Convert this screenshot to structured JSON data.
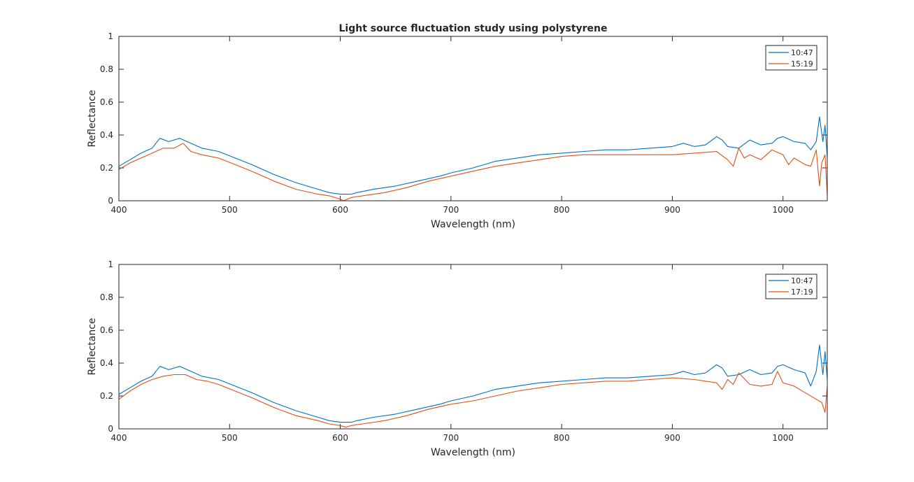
{
  "chart_data": [
    {
      "type": "line",
      "title": "Light source fluctuation study using polystyrene",
      "xlabel": "Wavelength (nm)",
      "ylabel": "Reflectance",
      "xlim": [
        400,
        1040
      ],
      "ylim": [
        0,
        1
      ],
      "xticks": [
        400,
        500,
        600,
        700,
        800,
        900,
        1000
      ],
      "yticks": [
        0,
        0.2,
        0.4,
        0.6,
        0.8,
        1
      ],
      "xtick_labels": [
        "400",
        "500",
        "600",
        "700",
        "800",
        "900",
        "1000"
      ],
      "ytick_labels": [
        "0",
        "0.2",
        "0.4",
        "0.6",
        "0.8",
        "1"
      ],
      "grid": false,
      "legend_position": "top-right",
      "series": [
        {
          "name": "10:47",
          "color": "#0072BD",
          "x": [
            400,
            410,
            420,
            430,
            437,
            445,
            455,
            465,
            475,
            490,
            505,
            520,
            540,
            560,
            580,
            590,
            600,
            610,
            615,
            630,
            650,
            670,
            690,
            700,
            720,
            740,
            760,
            780,
            800,
            820,
            840,
            860,
            880,
            900,
            910,
            920,
            930,
            940,
            945,
            950,
            960,
            970,
            980,
            990,
            995,
            1000,
            1010,
            1020,
            1025,
            1030,
            1033,
            1036,
            1038,
            1040
          ],
          "y": [
            0.21,
            0.25,
            0.29,
            0.32,
            0.38,
            0.36,
            0.38,
            0.35,
            0.32,
            0.3,
            0.26,
            0.22,
            0.16,
            0.11,
            0.07,
            0.05,
            0.04,
            0.04,
            0.05,
            0.07,
            0.09,
            0.12,
            0.15,
            0.17,
            0.2,
            0.24,
            0.26,
            0.28,
            0.29,
            0.3,
            0.31,
            0.31,
            0.32,
            0.33,
            0.35,
            0.33,
            0.34,
            0.39,
            0.37,
            0.33,
            0.32,
            0.37,
            0.34,
            0.35,
            0.38,
            0.39,
            0.36,
            0.35,
            0.31,
            0.36,
            0.51,
            0.36,
            0.46,
            0.26
          ]
        },
        {
          "name": "15:19",
          "color": "#D95319",
          "x": [
            400,
            410,
            420,
            430,
            440,
            450,
            458,
            465,
            475,
            490,
            505,
            520,
            540,
            560,
            580,
            590,
            600,
            603,
            610,
            620,
            640,
            660,
            680,
            700,
            720,
            740,
            760,
            780,
            800,
            820,
            840,
            860,
            880,
            900,
            920,
            940,
            950,
            955,
            960,
            965,
            970,
            980,
            990,
            1000,
            1005,
            1010,
            1020,
            1025,
            1030,
            1033,
            1035,
            1038,
            1040
          ],
          "y": [
            0.19,
            0.23,
            0.26,
            0.29,
            0.32,
            0.32,
            0.35,
            0.3,
            0.28,
            0.26,
            0.22,
            0.18,
            0.12,
            0.07,
            0.04,
            0.03,
            0.01,
            0.0,
            0.02,
            0.03,
            0.05,
            0.08,
            0.12,
            0.15,
            0.18,
            0.21,
            0.23,
            0.25,
            0.27,
            0.28,
            0.28,
            0.28,
            0.28,
            0.28,
            0.29,
            0.3,
            0.25,
            0.21,
            0.32,
            0.26,
            0.28,
            0.25,
            0.31,
            0.28,
            0.22,
            0.26,
            0.22,
            0.21,
            0.31,
            0.09,
            0.23,
            0.28,
            0.03
          ]
        }
      ]
    },
    {
      "type": "line",
      "title": "",
      "xlabel": "Wavelength (nm)",
      "ylabel": "Reflectance",
      "xlim": [
        400,
        1040
      ],
      "ylim": [
        0,
        1
      ],
      "xticks": [
        400,
        500,
        600,
        700,
        800,
        900,
        1000
      ],
      "yticks": [
        0,
        0.2,
        0.4,
        0.6,
        0.8,
        1
      ],
      "xtick_labels": [
        "400",
        "500",
        "600",
        "700",
        "800",
        "900",
        "1000"
      ],
      "ytick_labels": [
        "0",
        "0.2",
        "0.4",
        "0.6",
        "0.8",
        "1"
      ],
      "grid": false,
      "legend_position": "top-right",
      "series": [
        {
          "name": "10:47",
          "color": "#0072BD",
          "x": [
            400,
            410,
            420,
            430,
            437,
            445,
            455,
            465,
            475,
            490,
            505,
            520,
            540,
            560,
            580,
            590,
            600,
            610,
            615,
            630,
            650,
            670,
            690,
            700,
            720,
            740,
            760,
            780,
            800,
            820,
            840,
            860,
            880,
            900,
            910,
            920,
            930,
            940,
            945,
            950,
            960,
            970,
            980,
            990,
            995,
            1000,
            1010,
            1020,
            1025,
            1030,
            1033,
            1036,
            1038,
            1040
          ],
          "y": [
            0.21,
            0.25,
            0.29,
            0.32,
            0.38,
            0.36,
            0.38,
            0.35,
            0.32,
            0.3,
            0.26,
            0.22,
            0.16,
            0.11,
            0.07,
            0.05,
            0.04,
            0.04,
            0.05,
            0.07,
            0.09,
            0.12,
            0.15,
            0.17,
            0.2,
            0.24,
            0.26,
            0.28,
            0.29,
            0.3,
            0.31,
            0.31,
            0.32,
            0.33,
            0.35,
            0.33,
            0.34,
            0.39,
            0.37,
            0.32,
            0.33,
            0.36,
            0.33,
            0.34,
            0.38,
            0.39,
            0.36,
            0.34,
            0.26,
            0.35,
            0.51,
            0.33,
            0.47,
            0.3
          ]
        },
        {
          "name": "17:19",
          "color": "#D95319",
          "x": [
            400,
            410,
            420,
            430,
            440,
            450,
            460,
            470,
            480,
            490,
            505,
            520,
            540,
            560,
            580,
            590,
            600,
            605,
            610,
            620,
            640,
            660,
            680,
            700,
            720,
            740,
            760,
            780,
            800,
            820,
            840,
            860,
            880,
            900,
            920,
            940,
            945,
            950,
            955,
            960,
            970,
            980,
            990,
            995,
            1000,
            1010,
            1020,
            1030,
            1035,
            1038,
            1040
          ],
          "y": [
            0.18,
            0.23,
            0.27,
            0.3,
            0.32,
            0.33,
            0.33,
            0.3,
            0.29,
            0.27,
            0.23,
            0.19,
            0.13,
            0.08,
            0.05,
            0.03,
            0.02,
            0.01,
            0.02,
            0.03,
            0.05,
            0.08,
            0.12,
            0.15,
            0.17,
            0.2,
            0.23,
            0.25,
            0.27,
            0.28,
            0.29,
            0.29,
            0.3,
            0.31,
            0.3,
            0.28,
            0.24,
            0.3,
            0.27,
            0.34,
            0.27,
            0.26,
            0.27,
            0.35,
            0.28,
            0.26,
            0.22,
            0.18,
            0.16,
            0.1,
            0.26
          ]
        }
      ]
    }
  ]
}
